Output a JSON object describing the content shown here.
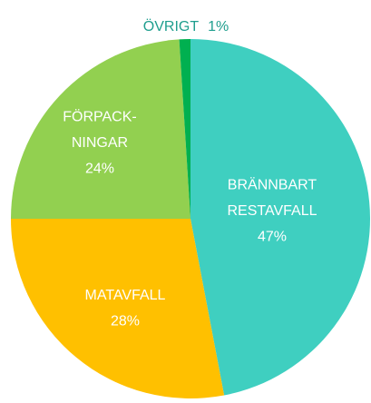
{
  "chart_data": {
    "type": "pie",
    "categories": [
      "BRÄNNBART\nRESTAVFALL",
      "MATAVFALL",
      "FÖRPACK-\nNINGAR",
      "ÖVRIGT"
    ],
    "values": [
      47,
      28,
      24,
      1
    ],
    "value_labels": [
      "47%",
      "28%",
      "24%",
      "1%"
    ],
    "colors": [
      "#3fcfc0",
      "#ffc000",
      "#92d050",
      "#00b050"
    ],
    "label_color_outside": "#1f9e8e"
  }
}
